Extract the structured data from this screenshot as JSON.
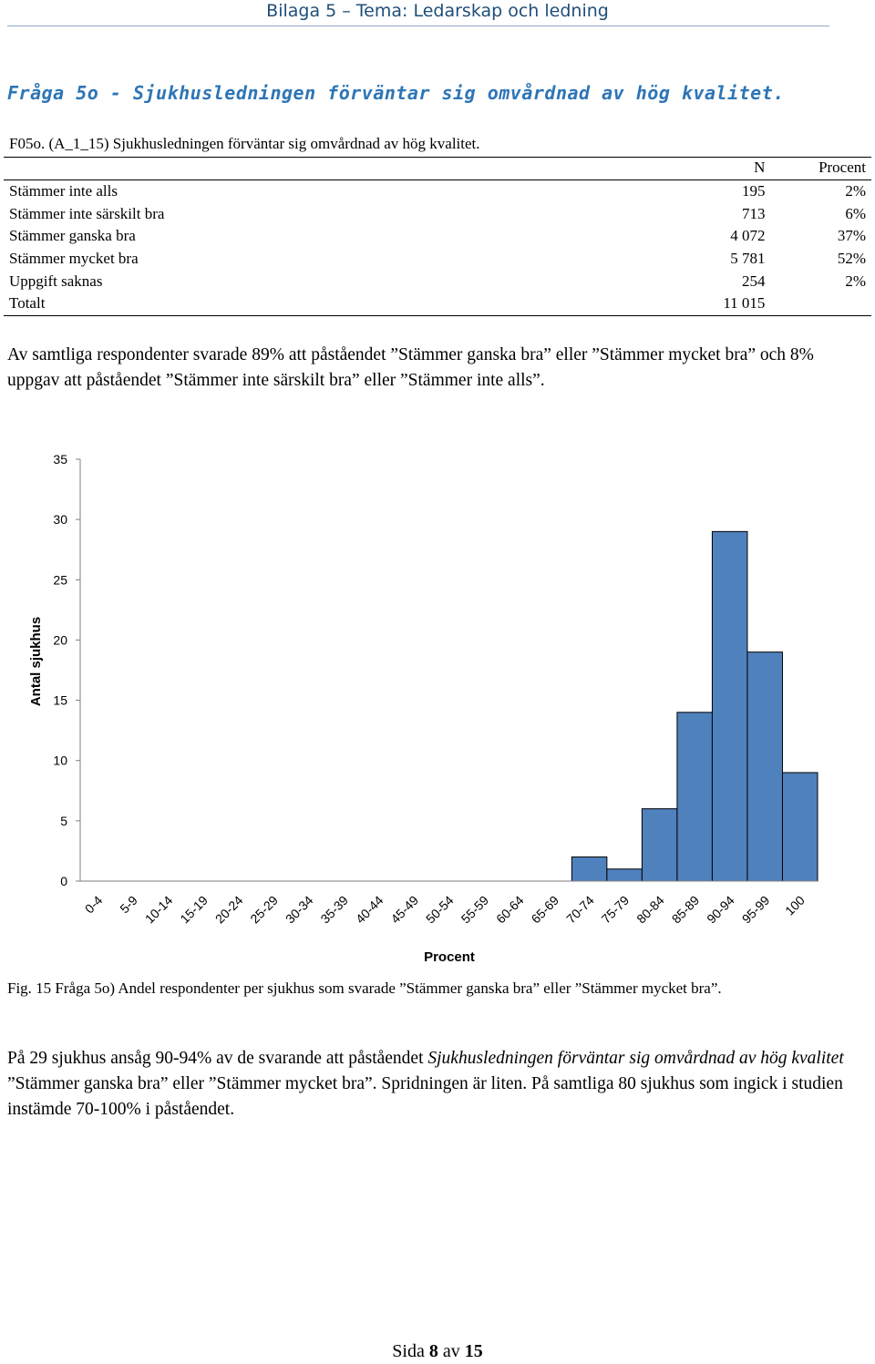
{
  "header": {
    "title": "Bilaga 5 – Tema: Ledarskap och ledning"
  },
  "heading": "Fråga 5o - Sjukhusledningen förväntar sig omvårdnad av hög kvalitet.",
  "question_line": "F05o. (A_1_15) Sjukhusledningen förväntar sig omvårdnad av hög kvalitet.",
  "table": {
    "headers": {
      "label": "",
      "n": "N",
      "pct": "Procent"
    },
    "rows": [
      {
        "label": "Stämmer inte alls",
        "n": "195",
        "pct": "2%"
      },
      {
        "label": "Stämmer inte särskilt bra",
        "n": "713",
        "pct": "6%"
      },
      {
        "label": "Stämmer ganska bra",
        "n": "4 072",
        "pct": "37%"
      },
      {
        "label": "Stämmer mycket bra",
        "n": "5 781",
        "pct": "52%"
      },
      {
        "label": "Uppgift saknas",
        "n": "254",
        "pct": "2%"
      },
      {
        "label": "Totalt",
        "n": "11 015",
        "pct": ""
      }
    ]
  },
  "paragraph1": "Av samtliga respondenter svarade 89% att påståendet ”Stämmer ganska bra” eller ”Stämmer mycket bra” och 8% uppgav att påståendet ”Stämmer inte särskilt bra” eller ”Stämmer inte alls”.",
  "chart_data": {
    "type": "bar",
    "categories": [
      "0-4",
      "5-9",
      "10-14",
      "15-19",
      "20-24",
      "25-29",
      "30-34",
      "35-39",
      "40-44",
      "45-49",
      "50-54",
      "55-59",
      "60-64",
      "65-69",
      "70-74",
      "75-79",
      "80-84",
      "85-89",
      "90-94",
      "95-99",
      "100"
    ],
    "values": [
      0,
      0,
      0,
      0,
      0,
      0,
      0,
      0,
      0,
      0,
      0,
      0,
      0,
      0,
      2,
      1,
      6,
      14,
      29,
      19,
      9
    ],
    "xlabel": "Procent",
    "ylabel": "Antal sjukhus",
    "ylim": [
      0,
      35
    ],
    "yticks": [
      0,
      5,
      10,
      15,
      20,
      25,
      30,
      35
    ],
    "bar_color": "#4f81bd",
    "grid": false
  },
  "caption": "Fig. 15 Fråga 5o) Andel respondenter per sjukhus som svarade ”Stämmer ganska bra” eller ”Stämmer mycket bra”.",
  "paragraph2": {
    "part1": "På 29 sjukhus ansåg 90-94% av de svarande att påståendet ",
    "italic": "Sjukhusledningen förväntar sig omvårdnad av hög kvalitet",
    "part2": " ”Stämmer ganska bra” eller ”Stämmer mycket bra”. Spridningen är liten. På samtliga 80 sjukhus som ingick i studien instämde 70-100% i påståendet."
  },
  "footer": {
    "prefix": "Sida ",
    "page": "8",
    "middle": " av ",
    "total": "15"
  }
}
